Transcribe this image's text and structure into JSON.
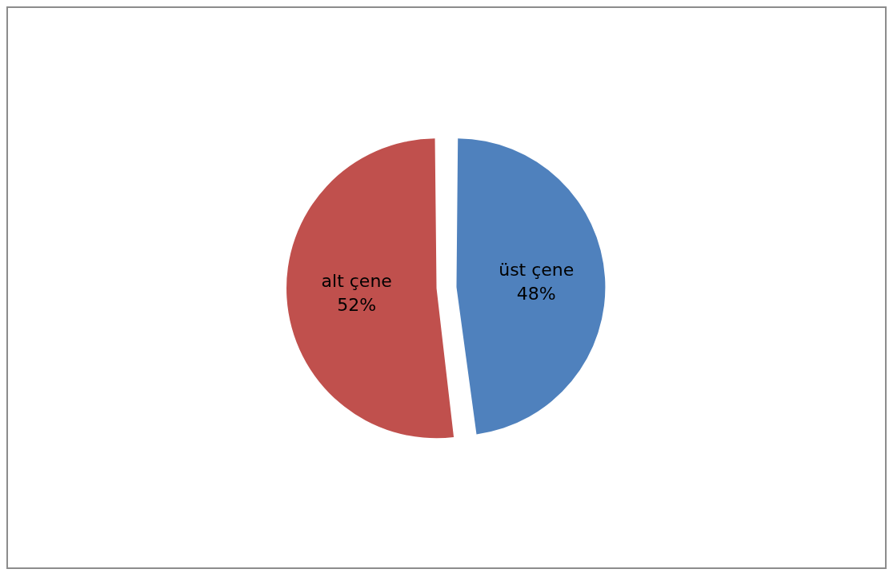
{
  "chart_data": {
    "type": "pie",
    "categories": [
      "üst çene",
      "alt çene"
    ],
    "values": [
      48,
      52
    ],
    "colors": [
      "#4f81bd",
      "#c0504d"
    ],
    "value_labels": [
      "48%",
      "52%"
    ],
    "legend": false
  }
}
